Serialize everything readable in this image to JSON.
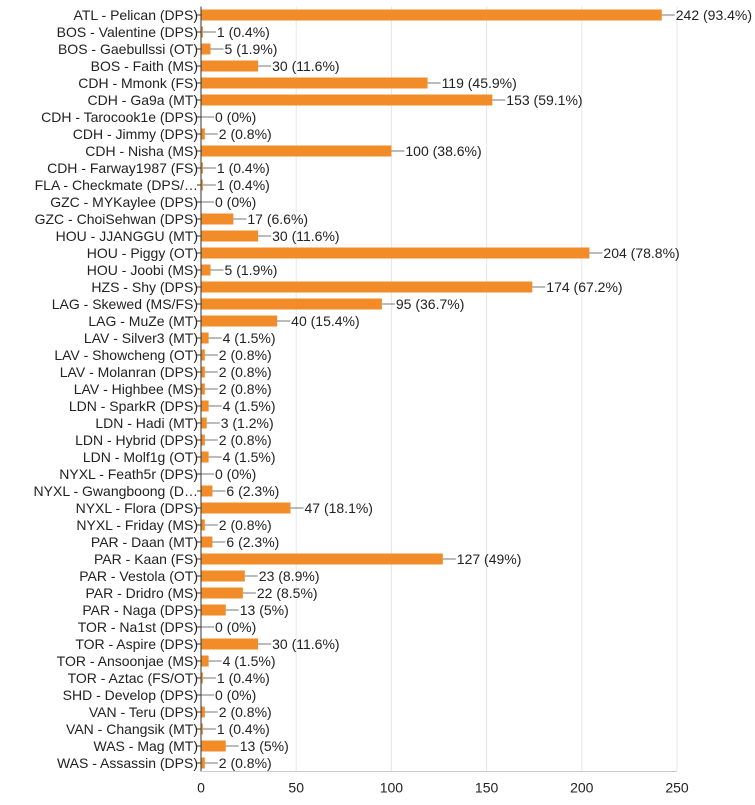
{
  "chart_data": {
    "type": "bar",
    "orientation": "horizontal",
    "categories": [
      "ATL - Pelican (DPS)",
      "BOS - Valentine (DPS)",
      "BOS - Gaebullssi (OT)",
      "BOS - Faith (MS)",
      "CDH - Mmonk (FS)",
      "CDH - Ga9a (MT)",
      "CDH - Tarocook1e (DPS)",
      "CDH - Jimmy (DPS)",
      "CDH - Nisha (MS)",
      "CDH - Farway1987 (FS)",
      "FLA - Checkmate (DPS/…",
      "GZC - MYKaylee (DPS)",
      "GZC - ChoiSehwan (DPS)",
      "HOU - JJANGGU (MT)",
      "HOU - Piggy (OT)",
      "HOU - Joobi (MS)",
      "HZS - Shy (DPS)",
      "LAG - Skewed (MS/FS)",
      "LAG - MuZe (MT)",
      "LAV - Silver3 (MT)",
      "LAV - Showcheng (OT)",
      "LAV - Molanran (DPS)",
      "LAV - Highbee (MS)",
      "LDN - SparkR (DPS)",
      "LDN - Hadi (MT)",
      "LDN - Hybrid (DPS)",
      "LDN - Molf1g (OT)",
      "NYXL - Feath5r (DPS)",
      "NYXL - Gwangboong (D…",
      "NYXL - Flora (DPS)",
      "NYXL - Friday (MS)",
      "PAR - Daan (MT)",
      "PAR - Kaan (FS)",
      "PAR - Vestola (OT)",
      "PAR - Dridro (MS)",
      "PAR - Naga (DPS)",
      "TOR - Na1st (DPS)",
      "TOR - Aspire (DPS)",
      "TOR - Ansoonjae (MS)",
      "TOR - Aztac (FS/OT)",
      "SHD - Develop (DPS)",
      "VAN - Teru (DPS)",
      "VAN - Changsik (MT)",
      "WAS - Mag (MT)",
      "WAS - Assassin (DPS)"
    ],
    "values": [
      242,
      1,
      5,
      30,
      119,
      153,
      0,
      2,
      100,
      1,
      1,
      0,
      17,
      30,
      204,
      5,
      174,
      95,
      40,
      4,
      2,
      2,
      2,
      4,
      3,
      2,
      4,
      0,
      6,
      47,
      2,
      6,
      127,
      23,
      22,
      13,
      0,
      30,
      4,
      1,
      0,
      2,
      1,
      13,
      2
    ],
    "data_labels": [
      "242 (93.4%)",
      "1 (0.4%)",
      "5 (1.9%)",
      "30 (11.6%)",
      "119 (45.9%)",
      "153 (59.1%)",
      "0 (0%)",
      "2 (0.8%)",
      "100 (38.6%)",
      "1 (0.4%)",
      "1 (0.4%)",
      "0 (0%)",
      "17 (6.6%)",
      "30 (11.6%)",
      "204 (78.8%)",
      "5 (1.9%)",
      "174 (67.2%)",
      "95 (36.7%)",
      "40 (15.4%)",
      "4 (1.5%)",
      "2 (0.8%)",
      "2 (0.8%)",
      "2 (0.8%)",
      "4 (1.5%)",
      "3 (1.2%)",
      "2 (0.8%)",
      "4 (1.5%)",
      "0 (0%)",
      "6 (2.3%)",
      "47 (18.1%)",
      "2 (0.8%)",
      "6 (2.3%)",
      "127 (49%)",
      "23 (8.9%)",
      "22 (8.5%)",
      "13 (5%)",
      "0 (0%)",
      "30 (11.6%)",
      "4 (1.5%)",
      "1 (0.4%)",
      "0 (0%)",
      "2 (0.8%)",
      "1 (0.4%)",
      "13 (5%)",
      "2 (0.8%)"
    ],
    "xlim": [
      0,
      250
    ],
    "xticks": [
      0,
      50,
      100,
      150,
      200,
      250
    ],
    "grid": true,
    "colors": {
      "bar": "#f28c28",
      "grid": "#e6e6e6",
      "axis": "#333333",
      "text": "#222222"
    }
  }
}
